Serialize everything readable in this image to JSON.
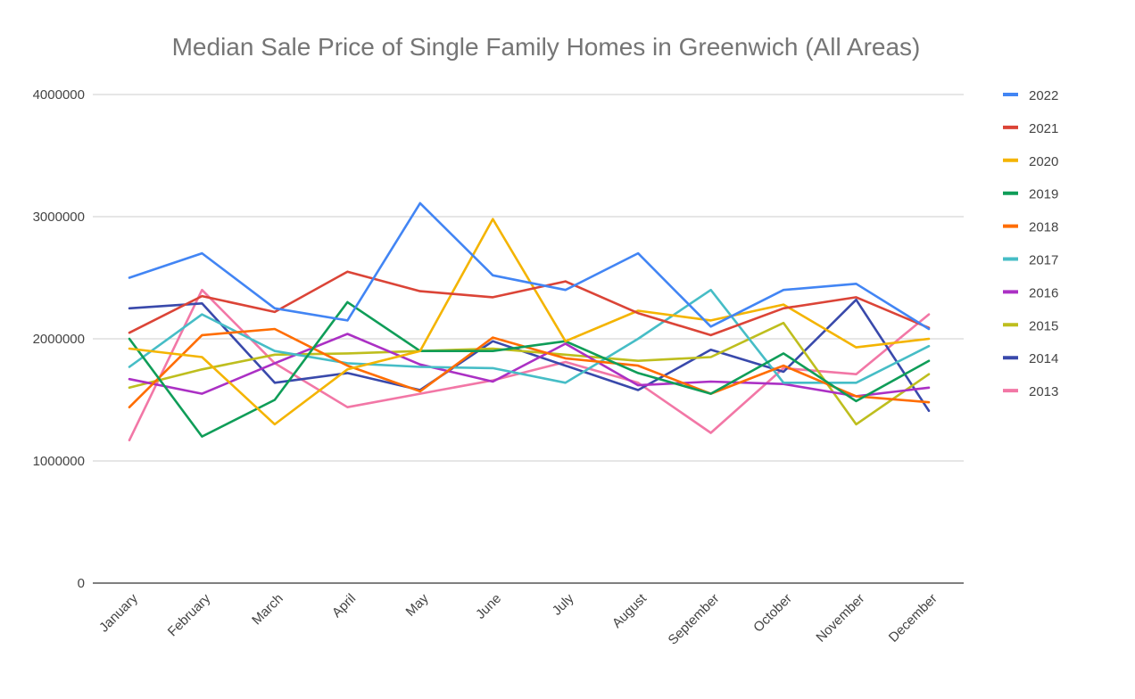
{
  "chart_data": {
    "type": "line",
    "title": "Median Sale Price of Single Family Homes in Greenwich (All Areas)",
    "xlabel": "",
    "ylabel": "",
    "ylim": [
      0,
      4000000
    ],
    "y_ticks": [
      {
        "value": 0,
        "label": "0"
      },
      {
        "value": 1000000,
        "label": "1000000"
      },
      {
        "value": 2000000,
        "label": "2000000"
      },
      {
        "value": 3000000,
        "label": "3000000"
      },
      {
        "value": 4000000,
        "label": "4000000"
      }
    ],
    "categories": [
      "January",
      "February",
      "March",
      "April",
      "May",
      "June",
      "July",
      "August",
      "September",
      "October",
      "November",
      "December"
    ],
    "legend_position": "right",
    "series": [
      {
        "name": "2022",
        "color": "#4285F4",
        "values": [
          2500000,
          2700000,
          2250000,
          2150000,
          3110000,
          2520000,
          2400000,
          2700000,
          2100000,
          2400000,
          2450000,
          2080000
        ]
      },
      {
        "name": "2021",
        "color": "#DB4437",
        "values": [
          2050000,
          2350000,
          2220000,
          2550000,
          2390000,
          2340000,
          2470000,
          2210000,
          2030000,
          2250000,
          2340000,
          2090000
        ]
      },
      {
        "name": "2020",
        "color": "#F4B400",
        "values": [
          1920000,
          1850000,
          1300000,
          1750000,
          1900000,
          2980000,
          1980000,
          2230000,
          2150000,
          2280000,
          1930000,
          2000000
        ]
      },
      {
        "name": "2019",
        "color": "#0F9D58",
        "values": [
          2000000,
          1200000,
          1500000,
          2300000,
          1900000,
          1900000,
          1980000,
          1720000,
          1550000,
          1880000,
          1490000,
          1820000
        ]
      },
      {
        "name": "2018",
        "color": "#FF6D00",
        "values": [
          1440000,
          2030000,
          2080000,
          1780000,
          1570000,
          2010000,
          1840000,
          1780000,
          1550000,
          1780000,
          1530000,
          1480000
        ]
      },
      {
        "name": "2017",
        "color": "#46BDC6",
        "values": [
          1770000,
          2200000,
          1900000,
          1800000,
          1770000,
          1760000,
          1640000,
          2000000,
          2400000,
          1640000,
          1640000,
          1940000
        ]
      },
      {
        "name": "2016",
        "color": "#AB30C4",
        "values": [
          1670000,
          1550000,
          1800000,
          2040000,
          1790000,
          1650000,
          1960000,
          1620000,
          1650000,
          1630000,
          1530000,
          1600000
        ]
      },
      {
        "name": "2015",
        "color": "#BEBE1E",
        "values": [
          1600000,
          1750000,
          1870000,
          1880000,
          1900000,
          1920000,
          1870000,
          1820000,
          1850000,
          2130000,
          1300000,
          1710000
        ]
      },
      {
        "name": "2014",
        "color": "#3949AB",
        "values": [
          2250000,
          2290000,
          1640000,
          1720000,
          1580000,
          1980000,
          1780000,
          1580000,
          1910000,
          1730000,
          2320000,
          1410000
        ]
      },
      {
        "name": "2013",
        "color": "#F277A6",
        "values": [
          1170000,
          2400000,
          1800000,
          1440000,
          1550000,
          1660000,
          1810000,
          1640000,
          1230000,
          1760000,
          1710000,
          2200000
        ]
      }
    ]
  }
}
